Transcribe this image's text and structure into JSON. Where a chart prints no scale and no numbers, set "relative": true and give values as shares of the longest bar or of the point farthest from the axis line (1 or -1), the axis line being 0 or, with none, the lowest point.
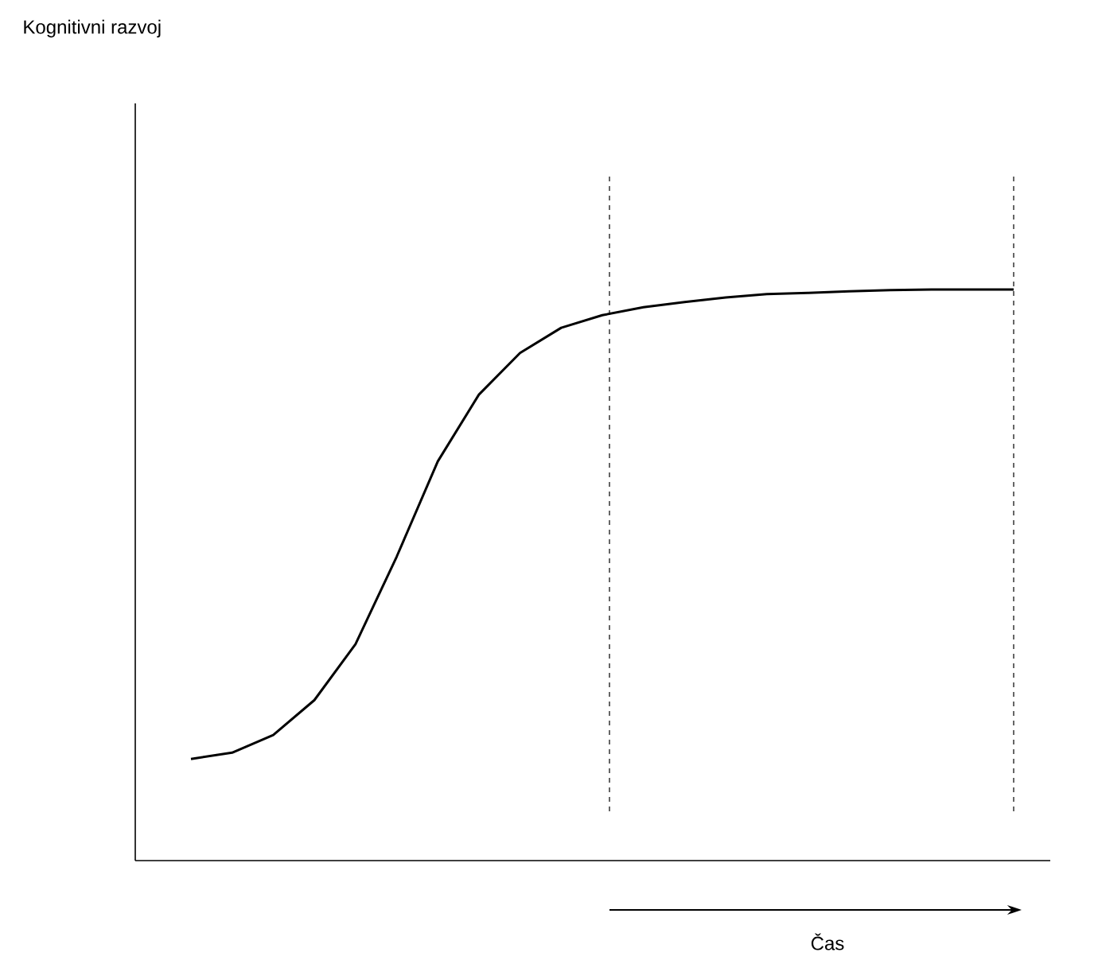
{
  "chart_data": {
    "type": "line",
    "relative": true,
    "annotations": [
      "Kognitivni razvoj"
    ],
    "xlabel": "Čas",
    "categories": [
      null,
      null,
      null,
      null,
      null,
      null,
      null,
      null,
      null,
      null,
      null,
      null,
      null,
      null,
      null,
      null,
      null,
      null,
      null,
      null,
      null
    ],
    "series": [
      {
        "color": "#000000",
        "values": [
          0.178,
          0.189,
          0.22,
          0.281,
          0.379,
          0.532,
          0.699,
          0.816,
          0.889,
          0.933,
          0.955,
          0.969,
          0.978,
          0.986,
          0.992,
          0.994,
          0.997,
          0.999,
          1,
          1,
          1
        ]
      }
    ],
    "line_style": "solid"
  }
}
